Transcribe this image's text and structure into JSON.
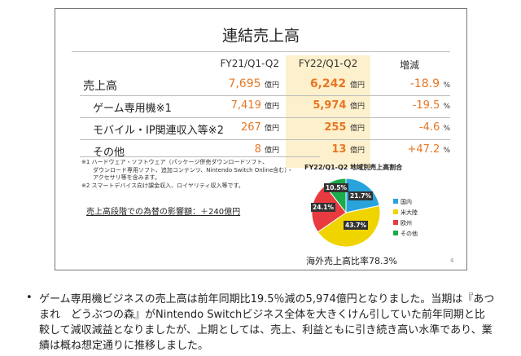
{
  "title": "連結売上高",
  "table": {
    "headers": [
      "FY21/Q1-Q2",
      "FY22/Q1-Q2",
      "増減"
    ],
    "unit": "億円",
    "pct": "%",
    "rows": [
      {
        "label": "売上高",
        "fy21": "7,695",
        "fy22": "6,242",
        "change": "-18.9"
      },
      {
        "label": "ゲーム専用機※1",
        "fy21": "7,419",
        "fy22": "5,974",
        "change": "-19.5"
      },
      {
        "label": "モバイル・IP関連収入等※2",
        "fy21": "267",
        "fy22": "255",
        "change": "-4.6"
      },
      {
        "label": "その他",
        "fy21": "8",
        "fy22": "13",
        "change": "+47.2"
      }
    ]
  },
  "notes": [
    "※1 ハードウェア・ソフトウェア（パッケージ併売ダウンロードソフト、",
    "ダウンロード専用ソフト、追加コンテンツ、Nintendo Switch Online含む）・",
    "アクセサリ等を含みます。",
    "※2 スマートデバイス向け課金収入、ロイヤリティ収入等です。"
  ],
  "fx_impact": "売上高段階での為替の影響額：＋240億円",
  "chart_data": {
    "type": "pie",
    "title": "FY22/Q1-Q2 地域別売上高割合",
    "categories": [
      "国内",
      "米大陸",
      "欧州",
      "その他"
    ],
    "values": [
      21.7,
      43.7,
      24.1,
      10.5
    ],
    "labels": [
      "21.7%",
      "43.7%",
      "24.1%",
      "10.5%"
    ],
    "colors": [
      "#29a3dc",
      "#f0d400",
      "#e83a3f",
      "#1aab4b"
    ],
    "legend": "right"
  },
  "overseas_ratio": "海外売上高比率78.3%",
  "page_number": "4",
  "bullet": "ゲーム専用機ビジネスの売上高は前年同期比19.5％減の5,974億円となりました。当期は『あつまれ　どうぶつの森』がNintendo Switchビジネス全体を大きくけん引していた前年同期と比較して減収減益となりましたが、上期としては、売上、利益ともに引き続き高い水準であり、業績は概ね想定通りに推移しました。"
}
